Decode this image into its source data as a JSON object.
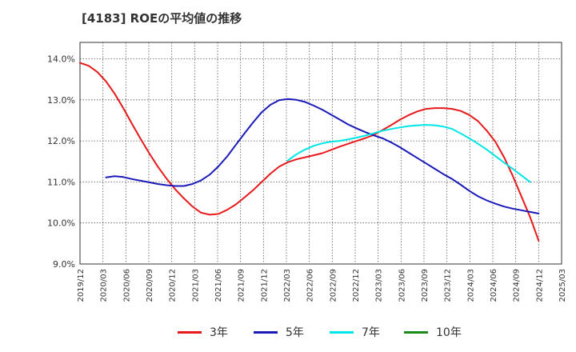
{
  "chart_data": {
    "type": "line",
    "title": "[4183]  ROEの平均値の推移",
    "xlabel": "",
    "ylabel": "",
    "ylim": [
      9.0,
      14.4
    ],
    "y_ticks": [
      "9.0%",
      "10.0%",
      "11.0%",
      "12.0%",
      "13.0%",
      "14.0%"
    ],
    "y_tick_values": [
      9.0,
      10.0,
      11.0,
      12.0,
      13.0,
      14.0
    ],
    "x_ticks": [
      "2019/12",
      "2020/03",
      "2020/06",
      "2020/09",
      "2020/12",
      "2021/03",
      "2021/06",
      "2021/09",
      "2021/12",
      "2022/03",
      "2022/06",
      "2022/09",
      "2022/12",
      "2023/03",
      "2023/06",
      "2023/09",
      "2023/12",
      "2024/03",
      "2024/06",
      "2024/09",
      "2024/12",
      "2025/03"
    ],
    "grid": true,
    "legend_position": "bottom",
    "series": [
      {
        "name": "3年",
        "color": "#e8191b",
        "values": [
          13.9,
          13.83,
          13.68,
          13.45,
          13.15,
          12.8,
          12.42,
          12.05,
          11.7,
          11.37,
          11.08,
          10.82,
          10.6,
          10.4,
          10.25,
          10.2,
          10.22,
          10.32,
          10.45,
          10.62,
          10.8,
          11.0,
          11.2,
          11.37,
          11.48,
          11.55,
          11.6,
          11.65,
          11.7,
          11.78,
          11.86,
          11.93,
          12.0,
          12.07,
          12.15,
          12.27,
          12.39,
          12.52,
          12.63,
          12.72,
          12.78,
          12.8,
          12.8,
          12.78,
          12.73,
          12.63,
          12.48,
          12.25,
          11.98,
          11.6,
          11.15,
          10.65,
          10.15,
          9.57
        ]
      },
      {
        "name": "5年",
        "color": "#1a1ab8",
        "values": [
          null,
          null,
          null,
          11.11,
          11.14,
          11.12,
          11.07,
          11.03,
          10.99,
          10.95,
          10.92,
          10.9,
          10.9,
          10.95,
          11.04,
          11.18,
          11.38,
          11.62,
          11.9,
          12.18,
          12.45,
          12.7,
          12.88,
          12.99,
          13.02,
          13.0,
          12.95,
          12.86,
          12.76,
          12.64,
          12.52,
          12.4,
          12.3,
          12.21,
          12.13,
          12.06,
          11.96,
          11.84,
          11.71,
          11.58,
          11.45,
          11.32,
          11.19,
          11.07,
          10.93,
          10.78,
          10.65,
          10.55,
          10.47,
          10.4,
          10.35,
          10.31,
          10.27,
          10.23
        ]
      },
      {
        "name": "7年",
        "color": "#00e5e5",
        "values": [
          null,
          null,
          null,
          null,
          null,
          null,
          null,
          null,
          null,
          null,
          null,
          null,
          null,
          null,
          null,
          null,
          null,
          null,
          null,
          null,
          null,
          null,
          null,
          null,
          11.52,
          11.67,
          11.79,
          11.88,
          11.94,
          11.98,
          12.0,
          12.04,
          12.08,
          12.13,
          12.19,
          12.25,
          12.29,
          12.33,
          12.36,
          12.38,
          12.39,
          12.38,
          12.35,
          12.29,
          12.18,
          12.06,
          11.93,
          11.79,
          11.63,
          11.47,
          11.32,
          11.16,
          11.0
        ]
      },
      {
        "name": "10年",
        "color": "#1a8a1a",
        "values": []
      }
    ]
  }
}
